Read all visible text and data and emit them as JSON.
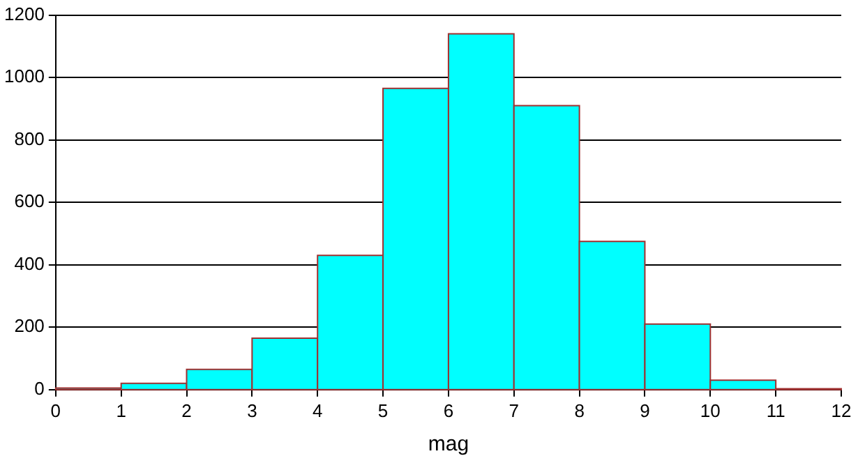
{
  "chart_data": {
    "type": "histogram",
    "xlabel": "mag",
    "bins": [
      0,
      1,
      2,
      3,
      4,
      5,
      6,
      7,
      8,
      9,
      10,
      11,
      12
    ],
    "values": [
      5,
      20,
      65,
      165,
      430,
      965,
      1140,
      910,
      475,
      210,
      30,
      3
    ],
    "color": "#00ffff",
    "xlim": [
      0,
      12
    ],
    "xticks": [
      0,
      1,
      2,
      3,
      4,
      5,
      6,
      7,
      8,
      9,
      10,
      11,
      12
    ],
    "ylim": [
      0,
      1200
    ],
    "yticks": [
      0,
      200,
      400,
      600,
      800,
      1000,
      1200
    ],
    "grid": "y",
    "legend": false
  }
}
